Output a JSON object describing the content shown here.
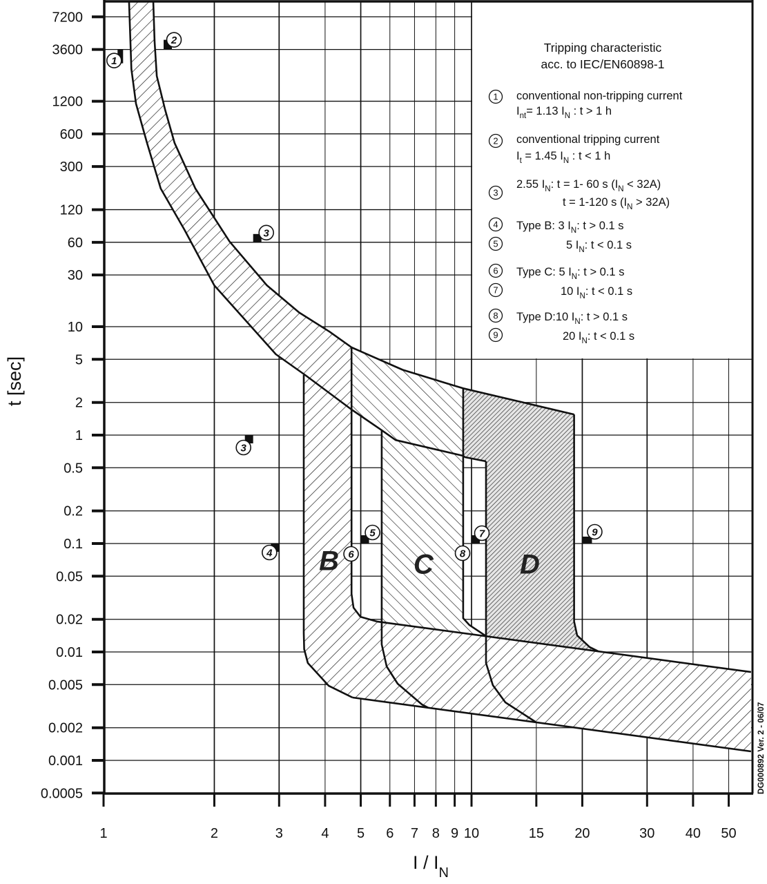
{
  "chart_data": {
    "type": "area",
    "x_scale": "log",
    "y_scale": "log",
    "xlim": [
      1,
      58
    ],
    "ylim": [
      0.0005,
      10000
    ],
    "grid": true,
    "xlabel": {
      "main": "I / I",
      "sub": "N"
    },
    "ylabel": "t [sec]",
    "x_ticks": [
      {
        "value": 1,
        "label": "1"
      },
      {
        "value": 2,
        "label": "2"
      },
      {
        "value": 3,
        "label": "3"
      },
      {
        "value": 4,
        "label": "4"
      },
      {
        "value": 5,
        "label": "5"
      },
      {
        "value": 6,
        "label": "6"
      },
      {
        "value": 7,
        "label": "7"
      },
      {
        "value": 8,
        "label": "8"
      },
      {
        "value": 9,
        "label": "9"
      },
      {
        "value": 10,
        "label": "10"
      },
      {
        "value": 15,
        "label": "15"
      },
      {
        "value": 20,
        "label": "20"
      },
      {
        "value": 30,
        "label": "30"
      },
      {
        "value": 40,
        "label": "40"
      },
      {
        "value": 50,
        "label": "50"
      }
    ],
    "y_ticks": [
      {
        "value": 7200,
        "label": "7200"
      },
      {
        "value": 3600,
        "label": "3600"
      },
      {
        "value": 1200,
        "label": "1200"
      },
      {
        "value": 600,
        "label": "600"
      },
      {
        "value": 300,
        "label": "300"
      },
      {
        "value": 120,
        "label": "120"
      },
      {
        "value": 60,
        "label": "60"
      },
      {
        "value": 30,
        "label": "30"
      },
      {
        "value": 10,
        "label": "10"
      },
      {
        "value": 5,
        "label": "5"
      },
      {
        "value": 2,
        "label": "2"
      },
      {
        "value": 1,
        "label": "1"
      },
      {
        "value": 0.5,
        "label": "0.5"
      },
      {
        "value": 0.2,
        "label": "0.2"
      },
      {
        "value": 0.1,
        "label": "0.1"
      },
      {
        "value": 0.05,
        "label": "0.05"
      },
      {
        "value": 0.02,
        "label": "0.02"
      },
      {
        "value": 0.01,
        "label": "0.01"
      },
      {
        "value": 0.005,
        "label": "0.005"
      },
      {
        "value": 0.002,
        "label": "0.002"
      },
      {
        "value": 0.001,
        "label": "0.001"
      },
      {
        "value": 0.0005,
        "label": "0.0005"
      }
    ],
    "regions": [
      {
        "name": "thermal-band",
        "hatch": "forward",
        "points": [
          [
            1.365,
            10000
          ],
          [
            1.376,
            4300
          ],
          [
            1.395,
            2050
          ],
          [
            1.47,
            1000
          ],
          [
            1.56,
            494
          ],
          [
            1.776,
            188
          ],
          [
            2.2,
            61
          ],
          [
            2.78,
            24
          ],
          [
            3.4,
            13.5
          ],
          [
            4.11,
            9.0
          ],
          [
            4.72,
            6.44
          ],
          [
            4.72,
            1.72
          ],
          [
            3.53,
            3.58
          ],
          [
            2.94,
            5.56
          ],
          [
            2.0,
            24
          ],
          [
            1.66,
            78
          ],
          [
            1.43,
            188
          ],
          [
            1.313,
            494
          ],
          [
            1.225,
            1140
          ],
          [
            1.19,
            2376
          ],
          [
            1.173,
            10000
          ]
        ]
      },
      {
        "name": "type-b-band",
        "hatch": "forward",
        "points": [
          [
            3.5,
            3.6
          ],
          [
            4.72,
            6.44
          ],
          [
            4.72,
            0.0343
          ],
          [
            4.78,
            0.0256
          ],
          [
            4.99,
            0.0211
          ],
          [
            5.53,
            0.0191
          ],
          [
            57.5,
            0.00653
          ],
          [
            57.5,
            0.00121
          ],
          [
            4.75,
            0.0038
          ],
          [
            4.09,
            0.00488
          ],
          [
            3.59,
            0.00791
          ],
          [
            3.51,
            0.0106
          ],
          [
            3.5,
            0.01486
          ]
        ]
      },
      {
        "name": "type-c-band",
        "hatch": "backward",
        "points": [
          [
            4.72,
            6.44
          ],
          [
            6.5,
            4.0
          ],
          [
            8.94,
            2.87
          ],
          [
            9.49,
            2.7
          ],
          [
            9.49,
            0.0205
          ],
          [
            9.87,
            0.0177
          ],
          [
            10.95,
            0.014
          ],
          [
            5.7,
            0.0188
          ],
          [
            5.7,
            1.11
          ],
          [
            4.72,
            1.72
          ]
        ]
      },
      {
        "name": "type-d-band",
        "hatch": "dense",
        "points": [
          [
            9.49,
            2.7
          ],
          [
            19.0,
            1.55
          ],
          [
            19.0,
            0.0191
          ],
          [
            19.37,
            0.0142
          ],
          [
            20.94,
            0.0111
          ],
          [
            22.14,
            0.0101
          ],
          [
            10.95,
            0.014
          ],
          [
            10.95,
            0.573
          ],
          [
            9.6,
            0.625
          ],
          [
            9.49,
            0.644
          ]
        ]
      }
    ],
    "curves": [
      {
        "name": "thermal-upper-curve",
        "points": [
          [
            1.365,
            10000
          ],
          [
            1.376,
            4300
          ],
          [
            1.395,
            2050
          ],
          [
            1.47,
            1000
          ],
          [
            1.56,
            494
          ],
          [
            1.776,
            188
          ],
          [
            2.2,
            61
          ],
          [
            2.78,
            24
          ],
          [
            3.4,
            13.5
          ],
          [
            4.11,
            9.0
          ],
          [
            4.72,
            6.44
          ],
          [
            6.5,
            4.0
          ],
          [
            8.94,
            2.87
          ],
          [
            9.49,
            2.7
          ],
          [
            19.0,
            1.55
          ]
        ]
      },
      {
        "name": "thermal-lower-curve",
        "points": [
          [
            1.173,
            10000
          ],
          [
            1.19,
            2376
          ],
          [
            1.225,
            1140
          ],
          [
            1.313,
            494
          ],
          [
            1.43,
            188
          ],
          [
            1.66,
            78
          ],
          [
            2.0,
            24
          ],
          [
            2.94,
            5.56
          ],
          [
            3.53,
            3.58
          ],
          [
            4.72,
            1.72
          ],
          [
            5.7,
            1.11
          ],
          [
            6.22,
            0.9
          ],
          [
            9.49,
            0.644
          ],
          [
            9.6,
            0.625
          ],
          [
            10.95,
            0.573
          ]
        ]
      },
      {
        "name": "type-b-left-edge",
        "points": [
          [
            3.5,
            3.6
          ],
          [
            3.5,
            0.01486
          ],
          [
            3.51,
            0.0106
          ],
          [
            3.59,
            0.00791
          ],
          [
            4.09,
            0.00488
          ],
          [
            4.75,
            0.0038
          ]
        ]
      },
      {
        "name": "type-b-right-edge",
        "points": [
          [
            4.72,
            6.44
          ],
          [
            4.72,
            0.0343
          ],
          [
            4.78,
            0.0256
          ],
          [
            4.99,
            0.0211
          ],
          [
            5.53,
            0.0191
          ]
        ]
      },
      {
        "name": "instantaneous-upper-line",
        "points": [
          [
            5.53,
            0.0191
          ],
          [
            57.5,
            0.00653
          ]
        ]
      },
      {
        "name": "instantaneous-lower-line",
        "points": [
          [
            4.75,
            0.0038
          ],
          [
            57.5,
            0.00121
          ]
        ]
      },
      {
        "name": "type-c-left-edge",
        "points": [
          [
            5.7,
            1.11
          ],
          [
            5.7,
            0.01175
          ],
          [
            5.88,
            0.00735
          ],
          [
            6.3,
            0.00509
          ],
          [
            7.33,
            0.00328
          ],
          [
            7.62,
            0.00306
          ]
        ]
      },
      {
        "name": "type-c-right-edge",
        "points": [
          [
            9.49,
            2.7
          ],
          [
            9.49,
            0.0205
          ],
          [
            9.87,
            0.0177
          ],
          [
            10.95,
            0.014
          ]
        ]
      },
      {
        "name": "type-d-left-edge",
        "points": [
          [
            10.95,
            0.573
          ],
          [
            10.95,
            0.00791
          ],
          [
            11.43,
            0.00494
          ],
          [
            12.36,
            0.00343
          ],
          [
            14.94,
            0.00226
          ]
        ]
      },
      {
        "name": "type-d-right-edge",
        "points": [
          [
            19.0,
            1.55
          ],
          [
            19.0,
            0.0191
          ],
          [
            19.37,
            0.0142
          ],
          [
            20.94,
            0.0111
          ],
          [
            22.14,
            0.0101
          ]
        ]
      }
    ],
    "markers": [
      {
        "num": "1",
        "x": 1.13,
        "y": 3600
      },
      {
        "num": "2",
        "x": 1.45,
        "y": 3600
      },
      {
        "num": "3",
        "x": 2.55,
        "y": 60
      },
      {
        "num": "3",
        "x": 2.55,
        "y": 1
      },
      {
        "num": "4",
        "x": 3,
        "y": 0.1
      },
      {
        "num": "5",
        "x": 5,
        "y": 0.1
      },
      {
        "num": "6",
        "x": 5,
        "y": 0.1
      },
      {
        "num": "7",
        "x": 10,
        "y": 0.1
      },
      {
        "num": "8",
        "x": 10,
        "y": 0.1
      },
      {
        "num": "9",
        "x": 20,
        "y": 0.1
      }
    ],
    "zone_labels": [
      {
        "text": "B",
        "x": 4.1,
        "y": 0.07
      },
      {
        "text": "C",
        "x": 7.4,
        "y": 0.065
      },
      {
        "text": "D",
        "x": 14.4,
        "y": 0.065
      }
    ]
  },
  "legend": {
    "title": [
      "Tripping characteristic",
      "acc. to IEC/EN60898-1"
    ],
    "items": [
      {
        "num": "1",
        "lines": [
          [
            {
              "t": "conventional non-tripping current"
            }
          ],
          [
            {
              "t": "I"
            },
            {
              "s": "nt"
            },
            {
              "t": "= 1.13 I"
            },
            {
              "s": "N"
            },
            {
              "t": " : t > 1 h"
            }
          ]
        ]
      },
      {
        "num": "2",
        "lines": [
          [
            {
              "t": "conventional tripping current"
            }
          ],
          [
            {
              "t": "I"
            },
            {
              "s": "t"
            },
            {
              "t": " = 1.45 I"
            },
            {
              "s": "N"
            },
            {
              "t": " : t < 1 h"
            }
          ]
        ]
      },
      {
        "num": "3",
        "lines": [
          [
            {
              "t": "2.55 I"
            },
            {
              "s": "N"
            },
            {
              "t": ": t = 1- 60 s (I"
            },
            {
              "s": "N"
            },
            {
              "t": " < 32A)"
            }
          ],
          [
            {
              "t": "t = 1-120 s (I"
            },
            {
              "s": "N"
            },
            {
              "t": " > 32A)"
            }
          ]
        ]
      },
      {
        "num": "4",
        "lines": [
          [
            {
              "t": "Type B: 3 I"
            },
            {
              "s": "N"
            },
            {
              "t": ": t > 0.1 s"
            }
          ]
        ]
      },
      {
        "num": "5",
        "lines": [
          [
            {
              "t": "5 I"
            },
            {
              "s": "N"
            },
            {
              "t": ": t < 0.1 s"
            }
          ]
        ]
      },
      {
        "num": "6",
        "lines": [
          [
            {
              "t": "Type C: 5 I"
            },
            {
              "s": "N"
            },
            {
              "t": ": t > 0.1 s"
            }
          ]
        ]
      },
      {
        "num": "7",
        "lines": [
          [
            {
              "t": "10 I"
            },
            {
              "s": "N"
            },
            {
              "t": ": t < 0.1 s"
            }
          ]
        ]
      },
      {
        "num": "8",
        "lines": [
          [
            {
              "t": "Type D:10 I"
            },
            {
              "s": "N"
            },
            {
              "t": ": t > 0.1 s"
            }
          ]
        ]
      },
      {
        "num": "9",
        "lines": [
          [
            {
              "t": "20 I"
            },
            {
              "s": "N"
            },
            {
              "t": ": t < 0.1 s"
            }
          ]
        ]
      }
    ]
  },
  "document_code": "DG000892 Ver. 2 - 06/07",
  "colors": {
    "ink": "#111111",
    "background": "#ffffff"
  }
}
